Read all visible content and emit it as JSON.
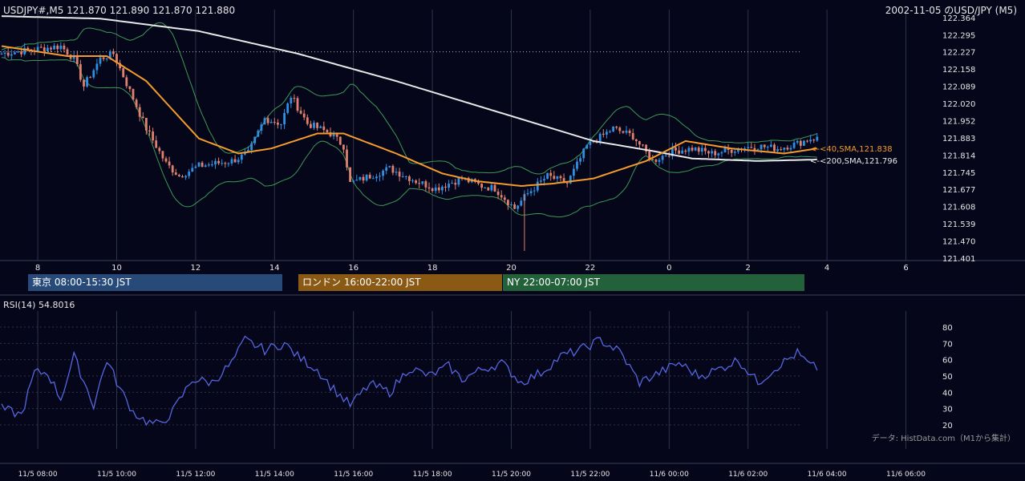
{
  "header": {
    "symbol_line": "USDJPY#,M5 121.870 121.890 121.870 121.880",
    "title_right": "2002-11-05 のUSD/JPY (M5)"
  },
  "colors": {
    "background": "#06061a",
    "bull": "#2f8fe0",
    "bear": "#e0806e",
    "sma40": "#f39c2b",
    "sma200": "#e8e8e8",
    "bollinger": "#3c9a55",
    "rsi": "#5566e0",
    "grid": "#2e3448"
  },
  "sessions": [
    {
      "label": "東京 08:00-15:30 JST",
      "color": "#274a78"
    },
    {
      "label": "ロンドン 16:00-22:00 JST",
      "color": "#8a5a14"
    },
    {
      "label": "NY 22:00-07:00 JST",
      "color": "#23613a"
    }
  ],
  "rsi_panel": {
    "label": "RSI(14) 54.8016",
    "source_note": "データ: HistData.com（M1から集計）"
  },
  "chart_data": [
    {
      "type": "candlestick",
      "title": "USDJPY#,M5 121.870 121.890 121.870 121.880",
      "x_tick_labels": [
        "8",
        "10",
        "12",
        "14",
        "16",
        "18",
        "20",
        "22",
        "0",
        "2",
        "4",
        "6"
      ],
      "y_ticks": [
        122.364,
        122.295,
        122.227,
        122.158,
        122.089,
        122.02,
        121.952,
        121.883,
        121.814,
        121.745,
        121.677,
        121.608,
        121.539,
        121.47,
        121.401
      ],
      "ylim": [
        121.401,
        122.364
      ],
      "start_time": "2002-11-05 07:05",
      "dotted_reference_level": 122.227,
      "indicators": [
        {
          "name": "<-<40,SMA,121.838",
          "value": 121.838
        },
        {
          "name": "<-<200,SMA,121.796",
          "value": 121.796
        },
        {
          "name": "Bollinger Bands"
        }
      ],
      "series_keypoints": {
        "close": [
          [
            0,
            122.22
          ],
          [
            6,
            122.23
          ],
          [
            12,
            122.24
          ],
          [
            18,
            122.25
          ],
          [
            22,
            122.2
          ],
          [
            25,
            122.09
          ],
          [
            30,
            122.2
          ],
          [
            34,
            122.22
          ],
          [
            38,
            122.1
          ],
          [
            44,
            121.92
          ],
          [
            50,
            121.78
          ],
          [
            54,
            121.73
          ],
          [
            60,
            121.77
          ],
          [
            70,
            121.79
          ],
          [
            75,
            121.82
          ],
          [
            80,
            121.96
          ],
          [
            85,
            121.94
          ],
          [
            88,
            122.05
          ],
          [
            93,
            121.94
          ],
          [
            100,
            121.9
          ],
          [
            104,
            121.85
          ],
          [
            106,
            121.7
          ],
          [
            112,
            121.73
          ],
          [
            118,
            121.76
          ],
          [
            126,
            121.71
          ],
          [
            132,
            121.68
          ],
          [
            140,
            121.72
          ],
          [
            146,
            121.69
          ],
          [
            150,
            121.68
          ],
          [
            156,
            121.6
          ],
          [
            160,
            121.66
          ],
          [
            166,
            121.73
          ],
          [
            172,
            121.7
          ],
          [
            178,
            121.85
          ],
          [
            186,
            121.92
          ],
          [
            192,
            121.89
          ],
          [
            198,
            121.79
          ],
          [
            204,
            121.83
          ],
          [
            210,
            121.84
          ],
          [
            216,
            121.82
          ],
          [
            224,
            121.84
          ],
          [
            230,
            121.85
          ],
          [
            236,
            121.84
          ],
          [
            242,
            121.86
          ],
          [
            246,
            121.88
          ],
          [
            248,
            121.88
          ]
        ],
        "sma40": [
          [
            0,
            122.25
          ],
          [
            20,
            122.21
          ],
          [
            32,
            122.21
          ],
          [
            44,
            122.11
          ],
          [
            60,
            121.88
          ],
          [
            72,
            121.82
          ],
          [
            82,
            121.84
          ],
          [
            96,
            121.9
          ],
          [
            104,
            121.9
          ],
          [
            120,
            121.82
          ],
          [
            134,
            121.74
          ],
          [
            144,
            121.71
          ],
          [
            158,
            121.69
          ],
          [
            168,
            121.7
          ],
          [
            180,
            121.72
          ],
          [
            196,
            121.79
          ],
          [
            208,
            121.87
          ],
          [
            222,
            121.84
          ],
          [
            238,
            121.82
          ],
          [
            248,
            121.84
          ]
        ],
        "sma200": [
          [
            0,
            122.37
          ],
          [
            30,
            122.36
          ],
          [
            60,
            122.31
          ],
          [
            90,
            122.22
          ],
          [
            120,
            122.11
          ],
          [
            150,
            121.99
          ],
          [
            180,
            121.87
          ],
          [
            198,
            121.83
          ],
          [
            210,
            121.8
          ],
          [
            230,
            121.79
          ],
          [
            248,
            121.796
          ]
        ]
      }
    },
    {
      "type": "line",
      "title": "RSI(14) 54.8016",
      "ylim": [
        20,
        80
      ],
      "y_ticks": [
        20,
        30,
        40,
        50,
        60,
        70,
        80
      ],
      "x_tick_labels": [
        "11/5 08:00",
        "11/5 10:00",
        "11/5 12:00",
        "11/5 14:00",
        "11/5 16:00",
        "11/5 18:00",
        "11/5 20:00",
        "11/5 22:00",
        "11/6 00:00",
        "11/6 02:00",
        "11/6 04:00",
        "11/6 06:00"
      ],
      "series": [
        {
          "values_keypoints": [
            [
              0,
              30
            ],
            [
              6,
              26
            ],
            [
              10,
              52
            ],
            [
              14,
              52
            ],
            [
              18,
              36
            ],
            [
              22,
              62
            ],
            [
              28,
              32
            ],
            [
              32,
              60
            ],
            [
              36,
              42
            ],
            [
              40,
              28
            ],
            [
              44,
              22
            ],
            [
              48,
              20
            ],
            [
              52,
              28
            ],
            [
              58,
              48
            ],
            [
              64,
              46
            ],
            [
              70,
              58
            ],
            [
              74,
              72
            ],
            [
              80,
              66
            ],
            [
              86,
              70
            ],
            [
              90,
              62
            ],
            [
              96,
              54
            ],
            [
              100,
              44
            ],
            [
              106,
              32
            ],
            [
              112,
              45
            ],
            [
              118,
              40
            ],
            [
              124,
              55
            ],
            [
              130,
              50
            ],
            [
              136,
              56
            ],
            [
              140,
              48
            ],
            [
              146,
              54
            ],
            [
              152,
              58
            ],
            [
              158,
              46
            ],
            [
              164,
              52
            ],
            [
              170,
              62
            ],
            [
              176,
              66
            ],
            [
              182,
              72
            ],
            [
              188,
              65
            ],
            [
              194,
              46
            ],
            [
              200,
              52
            ],
            [
              206,
              58
            ],
            [
              212,
              50
            ],
            [
              218,
              54
            ],
            [
              224,
              60
            ],
            [
              230,
              46
            ],
            [
              236,
              56
            ],
            [
              242,
              64
            ],
            [
              246,
              56
            ],
            [
              248,
              55
            ]
          ]
        }
      ]
    }
  ]
}
